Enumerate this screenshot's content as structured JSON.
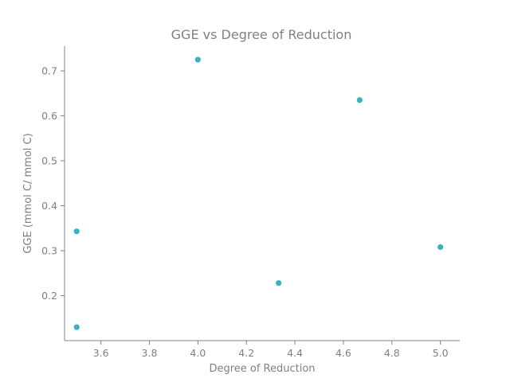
{
  "chart_data": {
    "type": "scatter",
    "title": "GGE vs Degree of Reduction",
    "xlabel": "Degree of Reduction",
    "ylabel": "GGE (mmol C/ mmol C)",
    "xlim": [
      3.45,
      5.08
    ],
    "ylim": [
      0.1,
      0.755
    ],
    "xticks": [
      "3.6",
      "3.8",
      "4.0",
      "4.2",
      "4.4",
      "4.6",
      "4.8",
      "5.0"
    ],
    "yticks": [
      "0.2",
      "0.3",
      "0.4",
      "0.5",
      "0.6",
      "0.7"
    ],
    "grid": false,
    "point_color": "#3ab0c3",
    "axis_color": "#808080",
    "points": [
      {
        "x": 3.5,
        "y": 0.343
      },
      {
        "x": 3.5,
        "y": 0.13
      },
      {
        "x": 4.0,
        "y": 0.725
      },
      {
        "x": 4.333,
        "y": 0.228
      },
      {
        "x": 4.667,
        "y": 0.635
      },
      {
        "x": 5.0,
        "y": 0.308
      }
    ]
  }
}
